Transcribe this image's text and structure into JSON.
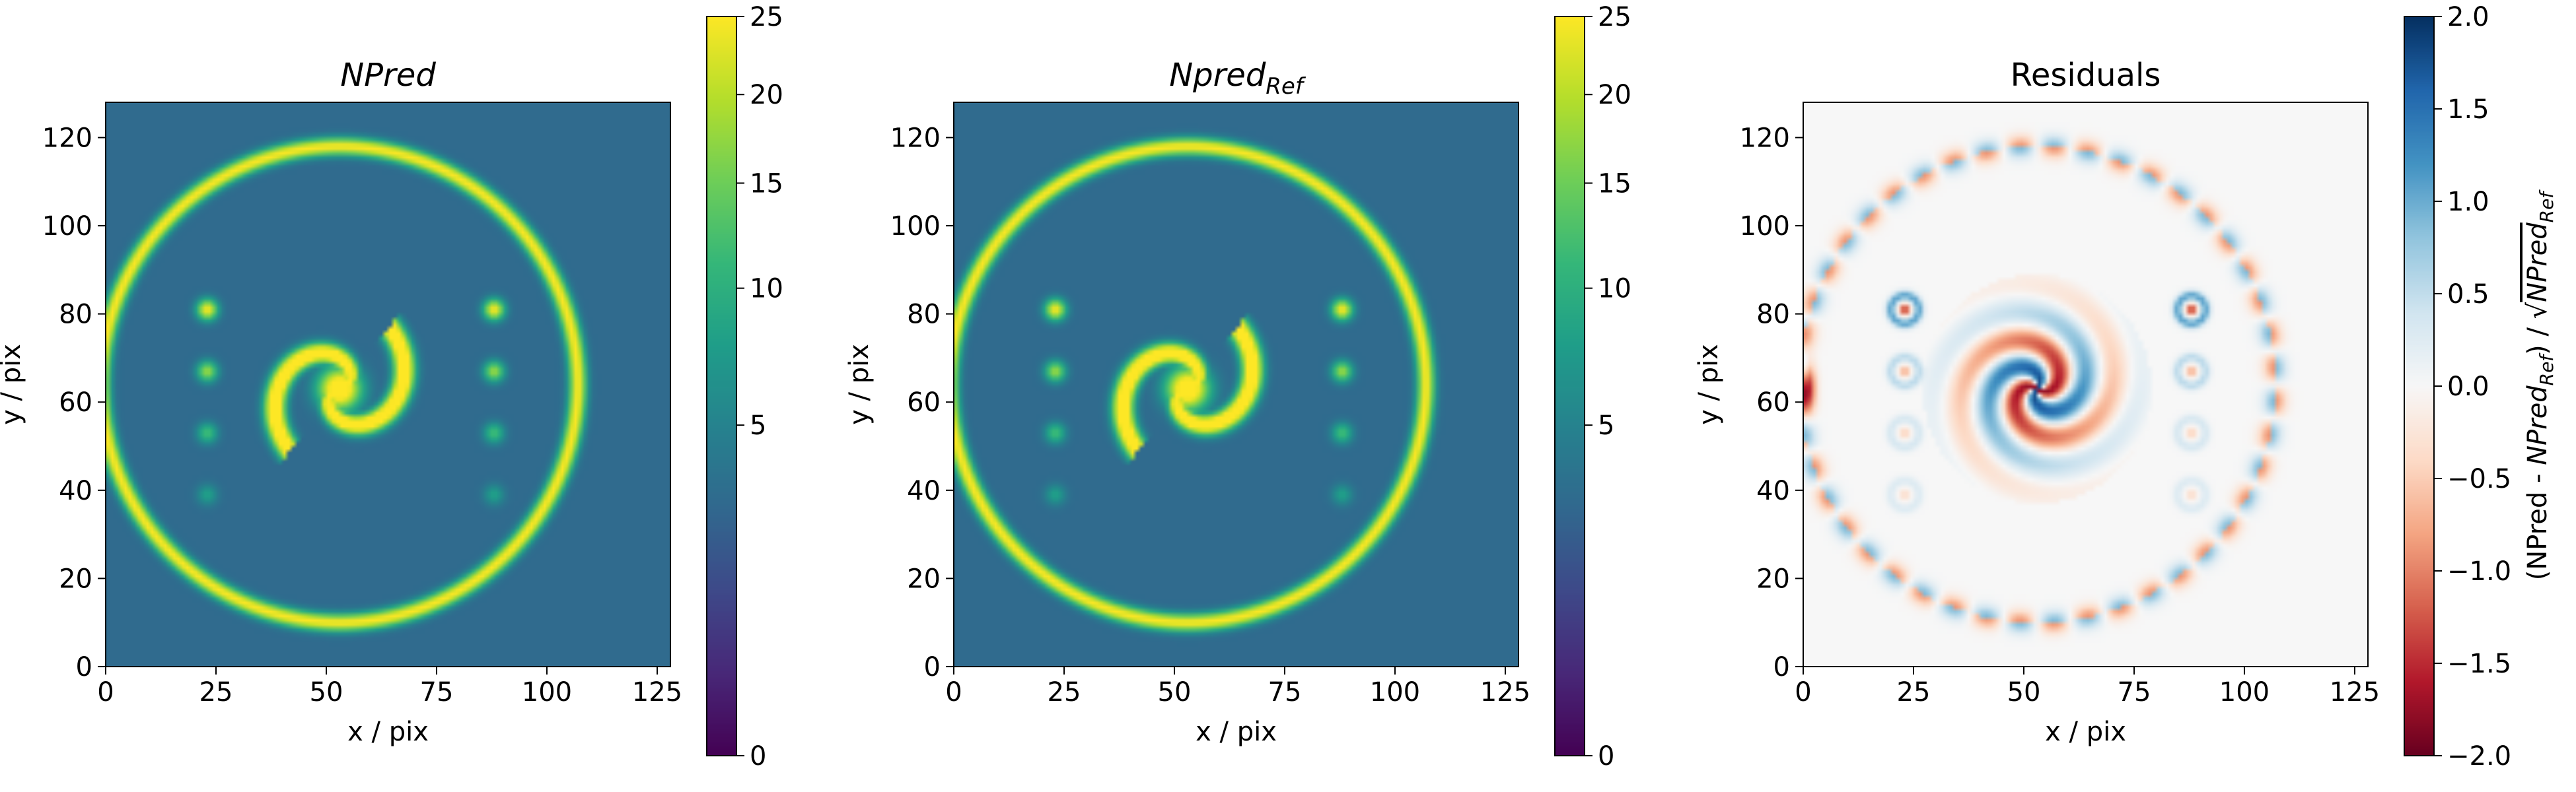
{
  "chart_data": [
    {
      "type": "heatmap",
      "title_main": "NPred",
      "title_sub": "",
      "title_italic": true,
      "xlabel": "x / pix",
      "ylabel": "y / pix",
      "xlim": [
        0,
        128
      ],
      "ylim": [
        0,
        128
      ],
      "x_ticks": [
        "0",
        "25",
        "50",
        "75",
        "100",
        "125"
      ],
      "y_ticks": [
        "0",
        "20",
        "40",
        "60",
        "80",
        "100",
        "120"
      ],
      "colormap": "viridis",
      "colorbar": {
        "scale": "sqrt",
        "ticks": [
          "0",
          "5",
          "10",
          "15",
          "20",
          "25"
        ],
        "range": [
          0,
          25
        ],
        "label": ""
      },
      "model": {
        "background": 3,
        "ring": {
          "center": [
            53,
            64
          ],
          "radius": 54,
          "peak": 22
        },
        "spiral": {
          "center": [
            53,
            63
          ],
          "peak": 30
        },
        "dots": [
          {
            "x": 23,
            "y": 81
          },
          {
            "x": 23,
            "y": 67
          },
          {
            "x": 23,
            "y": 53
          },
          {
            "x": 23,
            "y": 39
          },
          {
            "x": 88,
            "y": 81
          },
          {
            "x": 88,
            "y": 67
          },
          {
            "x": 88,
            "y": 53
          },
          {
            "x": 88,
            "y": 39
          }
        ],
        "dot_values": [
          22,
          15,
          9,
          5
        ]
      }
    },
    {
      "type": "heatmap",
      "title_main": "Npred",
      "title_sub": "Ref",
      "title_italic": true,
      "xlabel": "x / pix",
      "ylabel": "y / pix",
      "xlim": [
        0,
        128
      ],
      "ylim": [
        0,
        128
      ],
      "x_ticks": [
        "0",
        "25",
        "50",
        "75",
        "100",
        "125"
      ],
      "y_ticks": [
        "0",
        "20",
        "40",
        "60",
        "80",
        "100",
        "120"
      ],
      "colormap": "viridis",
      "colorbar": {
        "scale": "sqrt",
        "ticks": [
          "0",
          "5",
          "10",
          "15",
          "20",
          "25"
        ],
        "range": [
          0,
          25
        ],
        "label": ""
      },
      "model": {
        "background": 3,
        "ring": {
          "center": [
            53,
            64
          ],
          "radius": 54,
          "peak": 22
        },
        "spiral": {
          "center": [
            53,
            63
          ],
          "peak": 30
        },
        "dots": [
          {
            "x": 23,
            "y": 81
          },
          {
            "x": 23,
            "y": 67
          },
          {
            "x": 23,
            "y": 53
          },
          {
            "x": 23,
            "y": 39
          },
          {
            "x": 88,
            "y": 81
          },
          {
            "x": 88,
            "y": 67
          },
          {
            "x": 88,
            "y": 53
          },
          {
            "x": 88,
            "y": 39
          }
        ],
        "dot_values": [
          22,
          15,
          9,
          5
        ]
      }
    },
    {
      "type": "heatmap",
      "title_main": "Residuals",
      "title_sub": "",
      "title_italic": false,
      "xlabel": "x / pix",
      "ylabel": "y / pix",
      "xlim": [
        0,
        128
      ],
      "ylim": [
        0,
        128
      ],
      "x_ticks": [
        "0",
        "25",
        "50",
        "75",
        "100",
        "125"
      ],
      "y_ticks": [
        "0",
        "20",
        "40",
        "60",
        "80",
        "100",
        "120"
      ],
      "colormap": "RdBu",
      "colorbar": {
        "scale": "linear",
        "ticks": [
          "2.0",
          "1.5",
          "1.0",
          "0.5",
          "0.0",
          "−0.5",
          "−1.0",
          "−1.5",
          "−2.0"
        ],
        "range": [
          -2,
          2
        ],
        "label": "(NPred - NPred_Ref) / √NPred_Ref",
        "label_parts": [
          "(NPred - ",
          "NPred",
          "Ref",
          ") / ",
          "NPred",
          "Ref"
        ]
      },
      "model": {
        "ring": {
          "center": [
            53,
            64
          ],
          "radius": 54,
          "amplitude": 0.9
        },
        "spiral": {
          "center": [
            53,
            63
          ],
          "amplitude": 1.8
        },
        "dots": [
          {
            "x": 23,
            "y": 81
          },
          {
            "x": 23,
            "y": 67
          },
          {
            "x": 23,
            "y": 53
          },
          {
            "x": 23,
            "y": 39
          },
          {
            "x": 88,
            "y": 81
          },
          {
            "x": 88,
            "y": 67
          },
          {
            "x": 88,
            "y": 53
          },
          {
            "x": 88,
            "y": 39
          }
        ],
        "edge_blob": {
          "x": 1,
          "y": 64,
          "amplitude": -1.6
        }
      }
    }
  ]
}
